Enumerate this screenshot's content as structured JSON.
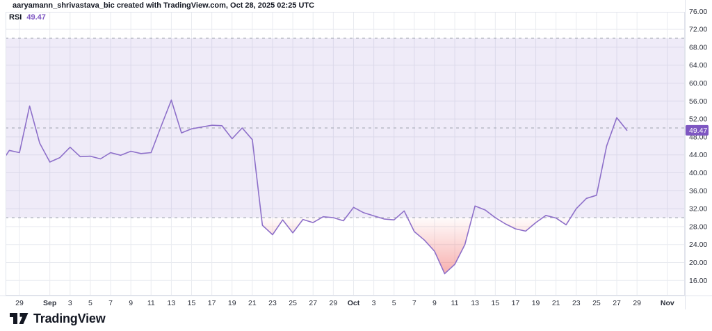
{
  "attribution": "aaryamann_shrivastava_bic created with TradingView.com, Oct 28, 2025 02:25 UTC",
  "legend": {
    "indicator": "RSI",
    "value": "49.47"
  },
  "footer": {
    "brand": "TradingView"
  },
  "price_axis": {
    "last_value_badge": "49.47"
  },
  "colors": {
    "accent": "#7e57c2",
    "rsi_line": "#8d6fc9",
    "band_fill": "rgba(126,87,194,0.12)",
    "oversold": "#ef5350",
    "dashed_line": "#9da3ae",
    "grid": "#e9ebf0",
    "frame": "#e0e3eb",
    "axis_text": "#2a2e39",
    "badge_text": "#ffffff",
    "text": "#131722"
  },
  "chart_data": {
    "type": "line",
    "title": "RSI",
    "series_name": "RSI",
    "legend_position": "top-left",
    "grid": true,
    "last_value": 49.47,
    "bands": {
      "upper": 70,
      "middle": 50,
      "lower": 30
    },
    "y_ticks": [
      16,
      20,
      24,
      28,
      32,
      36,
      40,
      44,
      48,
      52,
      56,
      60,
      64,
      68,
      72,
      76
    ],
    "y_visible_range": [
      12.6,
      75.9
    ],
    "ylabel": "",
    "xlabel": "",
    "dates": [
      "Aug 27",
      "Aug 28",
      "Aug 29",
      "Aug 30",
      "Aug 31",
      "Sep 1",
      "Sep 2",
      "Sep 3",
      "Sep 4",
      "Sep 5",
      "Sep 6",
      "Sep 7",
      "Sep 8",
      "Sep 9",
      "Sep 10",
      "Sep 11",
      "Sep 12",
      "Sep 13",
      "Sep 14",
      "Sep 15",
      "Sep 16",
      "Sep 17",
      "Sep 18",
      "Sep 19",
      "Sep 20",
      "Sep 21",
      "Sep 22",
      "Sep 23",
      "Sep 24",
      "Sep 25",
      "Sep 26",
      "Sep 27",
      "Sep 28",
      "Sep 29",
      "Sep 30",
      "Oct 1",
      "Oct 2",
      "Oct 3",
      "Oct 4",
      "Oct 5",
      "Oct 6",
      "Oct 7",
      "Oct 8",
      "Oct 9",
      "Oct 10",
      "Oct 11",
      "Oct 12",
      "Oct 13",
      "Oct 14",
      "Oct 15",
      "Oct 16",
      "Oct 17",
      "Oct 18",
      "Oct 19",
      "Oct 20",
      "Oct 21",
      "Oct 22",
      "Oct 23",
      "Oct 24",
      "Oct 25",
      "Oct 26",
      "Oct 27",
      "Oct 28"
    ],
    "values": [
      41.6,
      45.0,
      44.5,
      54.9,
      46.6,
      42.4,
      43.4,
      45.7,
      43.6,
      43.7,
      43.1,
      44.5,
      43.9,
      44.8,
      44.3,
      44.5,
      50.4,
      56.2,
      48.9,
      49.8,
      50.2,
      50.6,
      50.5,
      47.6,
      50.0,
      47.4,
      28.3,
      26.2,
      29.5,
      26.6,
      29.6,
      28.9,
      30.2,
      30.0,
      29.3,
      32.3,
      31.1,
      30.4,
      29.7,
      29.5,
      31.5,
      26.9,
      25.0,
      22.5,
      17.5,
      19.6,
      24.0,
      32.6,
      31.7,
      30.0,
      28.6,
      27.5,
      27.0,
      28.9,
      30.5,
      29.9,
      28.4,
      32.0,
      34.3,
      35.0,
      46.0,
      52.3,
      49.47
    ],
    "x_ticks": [
      {
        "label": "29",
        "day": 2
      },
      {
        "label": "Sep",
        "day": 5,
        "bold": true
      },
      {
        "label": "3",
        "day": 7
      },
      {
        "label": "5",
        "day": 9
      },
      {
        "label": "7",
        "day": 11
      },
      {
        "label": "9",
        "day": 13
      },
      {
        "label": "11",
        "day": 15
      },
      {
        "label": "13",
        "day": 17
      },
      {
        "label": "15",
        "day": 19
      },
      {
        "label": "17",
        "day": 21
      },
      {
        "label": "19",
        "day": 23
      },
      {
        "label": "21",
        "day": 25
      },
      {
        "label": "23",
        "day": 27
      },
      {
        "label": "25",
        "day": 29
      },
      {
        "label": "27",
        "day": 31
      },
      {
        "label": "29",
        "day": 33
      },
      {
        "label": "Oct",
        "day": 35,
        "bold": true
      },
      {
        "label": "3",
        "day": 37
      },
      {
        "label": "5",
        "day": 39
      },
      {
        "label": "7",
        "day": 41
      },
      {
        "label": "9",
        "day": 43
      },
      {
        "label": "11",
        "day": 45
      },
      {
        "label": "13",
        "day": 47
      },
      {
        "label": "15",
        "day": 49
      },
      {
        "label": "17",
        "day": 51
      },
      {
        "label": "19",
        "day": 53
      },
      {
        "label": "21",
        "day": 55
      },
      {
        "label": "23",
        "day": 57
      },
      {
        "label": "25",
        "day": 59
      },
      {
        "label": "27",
        "day": 61
      },
      {
        "label": "29",
        "day": 63
      },
      {
        "label": "Nov",
        "day": 66,
        "bold": true
      }
    ]
  }
}
